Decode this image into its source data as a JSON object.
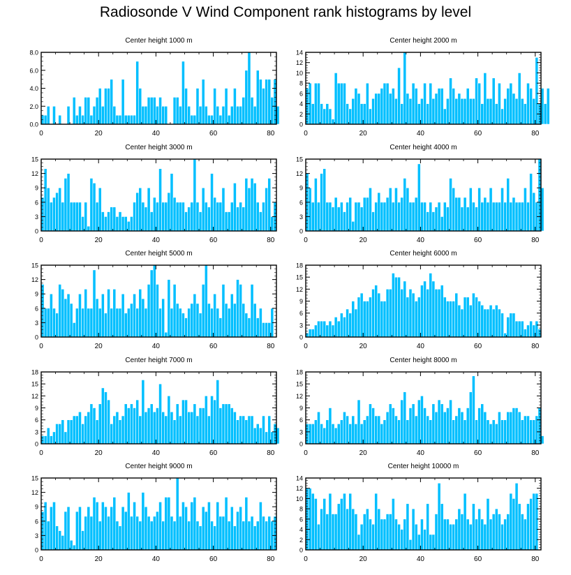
{
  "title": "Radiosonde V Wind Component rank histograms by level",
  "colors": {
    "bar": "#00BFFF",
    "bar_edge": "#ffffff",
    "axis": "#000000"
  },
  "chart_data": [
    {
      "type": "bar",
      "title": "Center height 1000 m",
      "xlim": [
        0,
        82
      ],
      "ylim": [
        0,
        8
      ],
      "xticks": [
        0,
        20,
        40,
        60,
        80
      ],
      "yticks": [
        0,
        2,
        4,
        6,
        8
      ],
      "ytick_labels": [
        "0.0",
        "2.0",
        "4.0",
        "6.0",
        "8.0"
      ],
      "values": [
        1,
        1,
        2,
        0,
        2,
        0,
        1,
        0,
        0,
        2,
        0,
        3,
        1,
        2,
        1,
        3,
        3,
        1,
        2,
        3,
        4,
        2,
        4,
        4,
        5,
        2,
        1,
        1,
        5,
        1,
        1,
        1,
        1,
        7,
        4,
        2,
        2,
        3,
        3,
        3,
        2,
        3,
        2,
        2,
        0,
        0,
        3,
        3,
        2,
        7,
        4,
        2,
        1,
        1,
        4,
        2,
        5,
        2,
        1,
        1,
        4,
        2,
        1,
        2,
        4,
        1,
        2,
        4,
        2,
        2,
        3,
        6,
        8,
        3,
        2,
        6,
        5,
        4,
        5,
        5,
        3,
        5,
        2
      ]
    },
    {
      "type": "bar",
      "title": "Center height 2000 m",
      "xlim": [
        0,
        82
      ],
      "ylim": [
        0,
        14
      ],
      "xticks": [
        0,
        20,
        40,
        60,
        80
      ],
      "yticks": [
        0,
        2,
        4,
        6,
        8,
        10,
        12,
        14
      ],
      "ytick_labels": [
        "0",
        "2",
        "4",
        "6",
        "8",
        "10",
        "12",
        "14"
      ],
      "values": [
        7,
        8,
        4,
        8,
        8,
        4,
        3,
        4,
        3,
        1,
        10,
        8,
        8,
        8,
        4,
        3,
        5,
        7,
        6,
        4,
        4,
        8,
        3,
        5,
        6,
        6,
        7,
        8,
        8,
        6,
        7,
        5,
        11,
        4,
        14,
        6,
        5,
        8,
        7,
        4,
        5,
        8,
        4,
        8,
        5,
        6,
        7,
        7,
        3,
        5,
        9,
        7,
        5,
        6,
        5,
        5,
        7,
        5,
        5,
        9,
        8,
        4,
        10,
        5,
        5,
        9,
        4,
        8,
        3,
        5,
        7,
        8,
        6,
        5,
        10,
        5,
        4,
        8,
        7,
        5,
        13,
        4,
        7,
        4,
        7
      ]
    },
    {
      "type": "bar",
      "title": "Center height 3000 m",
      "xlim": [
        0,
        82
      ],
      "ylim": [
        0,
        15
      ],
      "xticks": [
        0,
        20,
        40,
        60,
        80
      ],
      "yticks": [
        0,
        3,
        6,
        9,
        12,
        15
      ],
      "ytick_labels": [
        "0",
        "3",
        "6",
        "9",
        "12",
        "15"
      ],
      "values": [
        7,
        13,
        9,
        6,
        7,
        8,
        9,
        6,
        11,
        12,
        6,
        6,
        6,
        6,
        3,
        6,
        1,
        11,
        10,
        6,
        9,
        4,
        3,
        4,
        5,
        5,
        3,
        4,
        3,
        3,
        2,
        3,
        6,
        8,
        9,
        6,
        5,
        9,
        4,
        7,
        6,
        13,
        6,
        6,
        8,
        12,
        7,
        6,
        6,
        6,
        4,
        5,
        6,
        15,
        6,
        4,
        9,
        6,
        5,
        12,
        7,
        6,
        6,
        9,
        4,
        4,
        6,
        10,
        5,
        6,
        5,
        11,
        9,
        11,
        10,
        6,
        4,
        6,
        9,
        11,
        3,
        6
      ]
    },
    {
      "type": "bar",
      "title": "Center height 4000 m",
      "xlim": [
        0,
        82
      ],
      "ylim": [
        0,
        15
      ],
      "xticks": [
        0,
        20,
        40,
        60,
        80
      ],
      "yticks": [
        0,
        3,
        6,
        9,
        12,
        15
      ],
      "ytick_labels": [
        "0",
        "3",
        "6",
        "9",
        "12",
        "15"
      ],
      "values": [
        12,
        9,
        6,
        11,
        6,
        12,
        13,
        6,
        6,
        5,
        7,
        5,
        6,
        4,
        6,
        7,
        2,
        6,
        6,
        5,
        7,
        7,
        9,
        4,
        6,
        8,
        6,
        6,
        7,
        9,
        6,
        9,
        6,
        7,
        11,
        9,
        6,
        6,
        7,
        14,
        6,
        6,
        4,
        6,
        4,
        5,
        6,
        3,
        6,
        5,
        11,
        9,
        7,
        7,
        5,
        7,
        5,
        9,
        6,
        5,
        9,
        6,
        7,
        6,
        9,
        6,
        6,
        6,
        9,
        6,
        11,
        6,
        7,
        6,
        6,
        6,
        9,
        6,
        12,
        8,
        6,
        15,
        9
      ]
    },
    {
      "type": "bar",
      "title": "Center height 5000 m",
      "xlim": [
        0,
        82
      ],
      "ylim": [
        0,
        15
      ],
      "xticks": [
        0,
        20,
        40,
        60,
        80
      ],
      "yticks": [
        0,
        3,
        6,
        9,
        12,
        15
      ],
      "ytick_labels": [
        "0",
        "3",
        "6",
        "9",
        "12",
        "15"
      ],
      "values": [
        11,
        6,
        6,
        9,
        6,
        5,
        11,
        10,
        8,
        9,
        7,
        3,
        6,
        9,
        6,
        10,
        6,
        6,
        14,
        8,
        6,
        9,
        5,
        10,
        6,
        10,
        6,
        6,
        9,
        5,
        6,
        7,
        9,
        6,
        10,
        8,
        6,
        11,
        14,
        15,
        11,
        6,
        8,
        1,
        12,
        6,
        11,
        7,
        6,
        5,
        4,
        6,
        7,
        9,
        7,
        5,
        11,
        15,
        7,
        6,
        9,
        6,
        4,
        11,
        7,
        6,
        9,
        7,
        12,
        11,
        7,
        5,
        4,
        11,
        7,
        4,
        6,
        3,
        3,
        3,
        6
      ]
    },
    {
      "type": "bar",
      "title": "Center height 6000 m",
      "xlim": [
        0,
        82
      ],
      "ylim": [
        0,
        18
      ],
      "xticks": [
        0,
        20,
        40,
        60,
        80
      ],
      "yticks": [
        0,
        3,
        6,
        9,
        12,
        15,
        18
      ],
      "ytick_labels": [
        "0",
        "3",
        "6",
        "9",
        "12",
        "15",
        "18"
      ],
      "values": [
        1,
        2,
        2,
        3,
        4,
        4,
        4,
        3,
        4,
        3,
        5,
        4,
        6,
        5,
        7,
        6,
        9,
        7,
        10,
        11,
        9,
        9,
        10,
        12,
        13,
        11,
        9,
        9,
        12,
        12,
        16,
        15,
        15,
        12,
        14,
        10,
        12,
        11,
        9,
        10,
        13,
        14,
        12,
        16,
        14,
        12,
        12,
        13,
        10,
        9,
        9,
        9,
        11,
        8,
        7,
        10,
        10,
        8,
        11,
        10,
        9,
        8,
        7,
        7,
        8,
        7,
        8,
        7,
        6,
        1,
        5,
        6,
        6,
        4,
        4,
        4,
        2,
        3,
        4,
        3,
        4,
        2
      ]
    },
    {
      "type": "bar",
      "title": "Center height 7000 m",
      "xlim": [
        0,
        82
      ],
      "ylim": [
        0,
        18
      ],
      "xticks": [
        0,
        20,
        40,
        60,
        80
      ],
      "yticks": [
        0,
        3,
        6,
        9,
        12,
        15,
        18
      ],
      "ytick_labels": [
        "0",
        "3",
        "6",
        "9",
        "12",
        "15",
        "18"
      ],
      "values": [
        2,
        2,
        4,
        2,
        3,
        5,
        5,
        6,
        3,
        6,
        6,
        7,
        7,
        8,
        5,
        7,
        8,
        10,
        9,
        6,
        10,
        14,
        13,
        11,
        5,
        7,
        8,
        6,
        7,
        10,
        9,
        10,
        9,
        11,
        7,
        16,
        8,
        9,
        10,
        8,
        9,
        15,
        8,
        7,
        12,
        8,
        6,
        10,
        7,
        11,
        11,
        8,
        8,
        10,
        7,
        9,
        9,
        12,
        7,
        12,
        11,
        16,
        9,
        10,
        10,
        10,
        9,
        8,
        6,
        7,
        7,
        6,
        7,
        7,
        4,
        5,
        4,
        7,
        3,
        7,
        3,
        5,
        4
      ]
    },
    {
      "type": "bar",
      "title": "Center height 8000 m",
      "xlim": [
        0,
        82
      ],
      "ylim": [
        0,
        18
      ],
      "xticks": [
        0,
        20,
        40,
        60,
        80
      ],
      "yticks": [
        0,
        3,
        6,
        9,
        12,
        15,
        18
      ],
      "ytick_labels": [
        "0",
        "3",
        "6",
        "9",
        "12",
        "15",
        "18"
      ],
      "values": [
        5,
        5,
        5,
        6,
        8,
        5,
        4,
        6,
        9,
        5,
        4,
        5,
        6,
        8,
        7,
        5,
        7,
        5,
        11,
        5,
        6,
        7,
        10,
        9,
        7,
        7,
        5,
        6,
        8,
        10,
        9,
        7,
        6,
        11,
        13,
        6,
        9,
        10,
        7,
        11,
        12,
        9,
        7,
        6,
        10,
        8,
        11,
        10,
        8,
        9,
        11,
        6,
        7,
        9,
        8,
        6,
        9,
        13,
        17,
        6,
        9,
        10,
        8,
        6,
        5,
        6,
        5,
        8,
        6,
        6,
        8,
        8,
        9,
        9,
        8,
        6,
        7,
        7,
        6,
        6,
        7,
        9,
        2
      ]
    },
    {
      "type": "bar",
      "title": "Center height 9000 m",
      "xlim": [
        0,
        82
      ],
      "ylim": [
        0,
        15
      ],
      "xticks": [
        0,
        20,
        40,
        60,
        80
      ],
      "yticks": [
        0,
        3,
        6,
        9,
        12,
        15
      ],
      "ytick_labels": [
        "0",
        "3",
        "6",
        "9",
        "12",
        "15"
      ],
      "values": [
        8,
        10,
        6,
        9,
        10,
        5,
        4,
        3,
        8,
        9,
        2,
        1,
        8,
        9,
        4,
        7,
        9,
        7,
        11,
        10,
        6,
        10,
        9,
        7,
        9,
        11,
        6,
        5,
        9,
        8,
        12,
        7,
        10,
        7,
        6,
        12,
        9,
        7,
        6,
        7,
        8,
        10,
        6,
        11,
        11,
        7,
        6,
        15,
        7,
        10,
        9,
        6,
        10,
        11,
        6,
        5,
        9,
        8,
        10,
        6,
        5,
        10,
        7,
        7,
        11,
        6,
        9,
        5,
        8,
        9,
        6,
        11,
        6,
        7,
        5,
        6,
        10,
        7,
        6,
        7,
        6,
        7
      ]
    },
    {
      "type": "bar",
      "title": "Center height 10000 m",
      "xlim": [
        0,
        82
      ],
      "ylim": [
        0,
        14
      ],
      "xticks": [
        0,
        20,
        40,
        60,
        80
      ],
      "yticks": [
        0,
        2,
        4,
        6,
        8,
        10,
        12,
        14
      ],
      "ytick_labels": [
        "0",
        "2",
        "4",
        "6",
        "8",
        "10",
        "12",
        "14"
      ],
      "values": [
        12,
        12,
        11,
        10,
        5,
        8,
        10,
        7,
        11,
        7,
        7,
        9,
        10,
        11,
        8,
        11,
        8,
        7,
        3,
        5,
        7,
        8,
        6,
        5,
        11,
        8,
        6,
        6,
        7,
        7,
        10,
        6,
        5,
        4,
        6,
        9,
        2,
        8,
        5,
        3,
        6,
        4,
        9,
        3,
        3,
        7,
        13,
        9,
        6,
        6,
        5,
        5,
        6,
        8,
        7,
        11,
        6,
        5,
        9,
        6,
        8,
        6,
        5,
        10,
        6,
        7,
        8,
        7,
        5,
        6,
        7,
        11,
        10,
        13,
        9,
        7,
        6,
        9,
        10,
        11,
        11
      ]
    }
  ]
}
